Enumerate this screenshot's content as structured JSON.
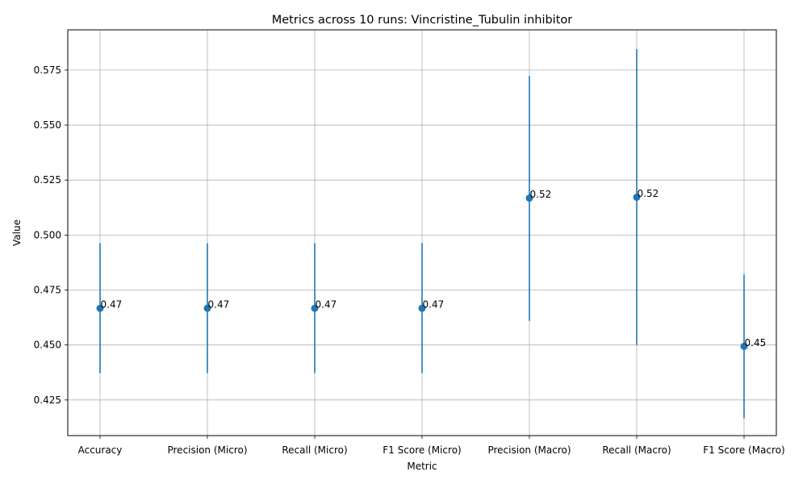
{
  "chart_data": {
    "type": "scatter",
    "title": "Metrics across 10 runs: Vincristine_Tubulin inhibitor",
    "xlabel": "Metric",
    "ylabel": "Value",
    "categories": [
      "Accuracy",
      "Precision (Micro)",
      "Recall (Micro)",
      "F1 Score (Micro)",
      "Precision (Macro)",
      "Recall (Macro)",
      "F1 Score (Macro)"
    ],
    "series": [
      {
        "values": [
          0.4667,
          0.4667,
          0.4667,
          0.4667,
          0.5168,
          0.5172,
          0.4494
        ],
        "error_low": [
          0.4372,
          0.4372,
          0.4372,
          0.4372,
          0.461,
          0.45,
          0.4167
        ],
        "error_high": [
          0.4963,
          0.4963,
          0.4963,
          0.4963,
          0.5723,
          0.5845,
          0.482
        ],
        "data_labels": [
          "0.47",
          "0.47",
          "0.47",
          "0.47",
          "0.52",
          "0.52",
          "0.45"
        ]
      }
    ],
    "ylim": [
      0.4088,
      0.5933
    ],
    "yticks": [
      "0.425",
      "0.450",
      "0.475",
      "0.500",
      "0.525",
      "0.550",
      "0.575"
    ],
    "ytick_values": [
      0.425,
      0.45,
      0.475,
      0.5,
      0.525,
      0.55,
      0.575
    ],
    "grid": true,
    "colors": {
      "marker": "#1f77b4",
      "errorbar": "#1f77b4",
      "grid": "#b0b0b0",
      "axes": "#000000"
    }
  }
}
